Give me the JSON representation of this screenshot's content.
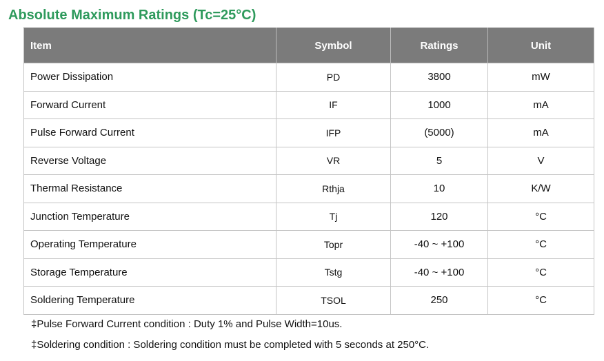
{
  "title": "Absolute Maximum Ratings (Tc=25°C)",
  "table": {
    "headers": [
      "Item",
      "Symbol",
      "Ratings",
      "Unit"
    ],
    "rows": [
      {
        "item": "Power Dissipation",
        "symbol": "PD",
        "rating": "3800",
        "unit": "mW"
      },
      {
        "item": "Forward Current",
        "symbol": "IF",
        "rating": "1000",
        "unit": "mA"
      },
      {
        "item": "Pulse Forward Current",
        "symbol": "IFP",
        "rating": "(5000)",
        "unit": "mA"
      },
      {
        "item": "Reverse Voltage",
        "symbol": "VR",
        "rating": "5",
        "unit": "V"
      },
      {
        "item": "Thermal Resistance",
        "symbol": "Rthja",
        "rating": "10",
        "unit": "K/W"
      },
      {
        "item": "Junction Temperature",
        "symbol": "Tj",
        "rating": "120",
        "unit": "°C"
      },
      {
        "item": "Operating Temperature",
        "symbol": "Topr",
        "rating": "-40 ~ +100",
        "unit": "°C"
      },
      {
        "item": "Storage Temperature",
        "symbol": "Tstg",
        "rating": "-40 ~ +100",
        "unit": "°C"
      },
      {
        "item": "Soldering Temperature",
        "symbol": "TSOL",
        "rating": "250",
        "unit": "°C"
      }
    ]
  },
  "notes": [
    "‡Pulse Forward Current condition : Duty 1% and Pulse Width=10us.",
    "‡Soldering condition : Soldering condition must be completed with 5 seconds at 250°C."
  ]
}
